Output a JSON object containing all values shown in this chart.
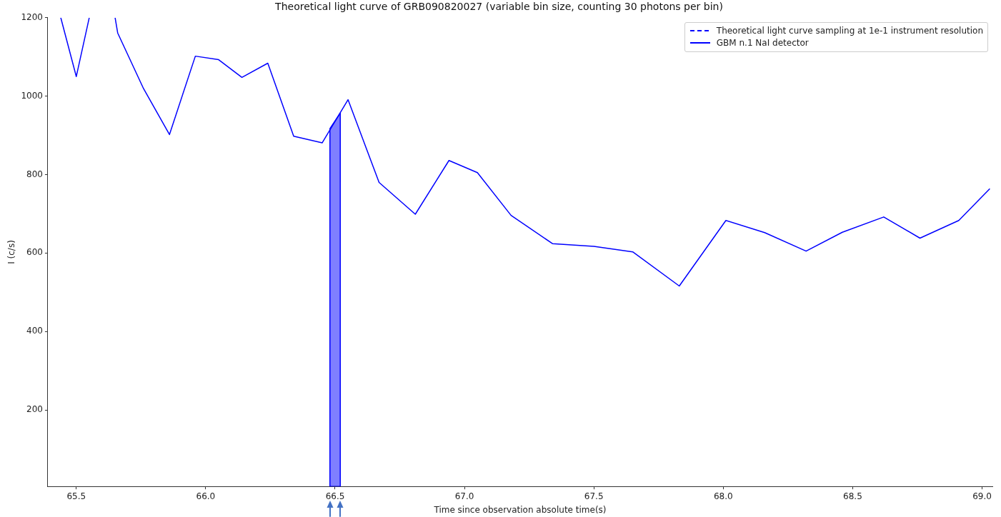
{
  "chart_data": {
    "type": "line",
    "title": "Theoretical light curve of GRB090820027 (variable bin size, counting 30 photons per bin)",
    "xlabel": "Time since observation absolute time(s)",
    "ylabel": "I (c/s)",
    "series": [
      {
        "name": "Theoretical light curve sampling at 1e-1 instrument resolution",
        "color": "#0000ff",
        "line_style": "dashed"
      },
      {
        "name": "GBM n.1 NaI detector",
        "color": "#0000ff",
        "line_style": "solid",
        "x": [
          65.44,
          65.5,
          65.55,
          65.6,
          65.65,
          65.66,
          65.76,
          65.86,
          65.96,
          66.05,
          66.14,
          66.24,
          66.34,
          66.45,
          66.55,
          66.67,
          66.81,
          66.94,
          67.05,
          67.18,
          67.34,
          67.5,
          67.65,
          67.83,
          68.01,
          68.16,
          68.32,
          68.46,
          68.62,
          68.76,
          68.91,
          69.03
        ],
        "values": [
          1200,
          1050,
          1200,
          null,
          1200,
          1161,
          1019,
          902,
          1102,
          1093,
          1048,
          1084,
          898,
          881,
          991,
          780,
          699,
          836,
          805,
          696,
          624,
          617,
          603,
          516,
          683,
          652,
          605,
          653,
          692,
          638,
          683,
          764
        ]
      },
      {
        "type": "area",
        "color": "#0000ff",
        "x": [
          66.48,
          66.52
        ],
        "values": [
          917,
          957
        ]
      }
    ],
    "xlim": [
      65.39,
      69.04
    ],
    "xticks": [
      {
        "value": 65.5,
        "label": "65.5"
      },
      {
        "value": 66,
        "label": "66.0"
      },
      {
        "value": 66.5,
        "label": "66.5"
      },
      {
        "value": 67,
        "label": "67.0"
      },
      {
        "value": 67.5,
        "label": "67.5"
      },
      {
        "value": 68,
        "label": "68.0"
      },
      {
        "value": 68.5,
        "label": "68.5"
      },
      {
        "value": 69,
        "label": "69.0"
      }
    ],
    "ylim": [
      5,
      1200
    ],
    "yticks": [
      200,
      400,
      600,
      800,
      1000,
      1200
    ],
    "grid": false,
    "legend": "top right",
    "marker": "none"
  }
}
